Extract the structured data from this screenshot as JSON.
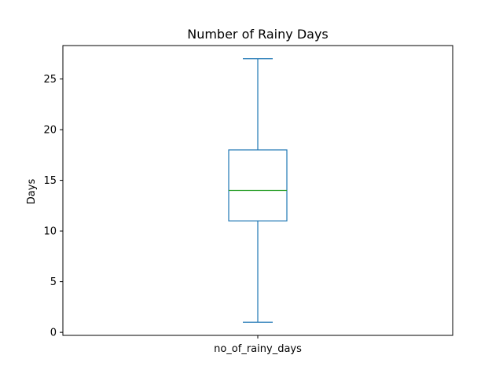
{
  "chart_data": {
    "type": "box",
    "title": "Number of Rainy Days",
    "xlabel": "",
    "ylabel": "Days",
    "ylim": [
      -0.3,
      28.3
    ],
    "yticks": [
      0,
      5,
      10,
      15,
      20,
      25
    ],
    "categories": [
      "no_of_rainy_days"
    ],
    "boxes": [
      {
        "category": "no_of_rainy_days",
        "whisker_low": 1,
        "q1": 11,
        "median": 14,
        "q3": 18,
        "whisker_high": 27
      }
    ],
    "grid": false,
    "colors": {
      "box": "#1f77b4",
      "median": "#2ca02c"
    }
  }
}
